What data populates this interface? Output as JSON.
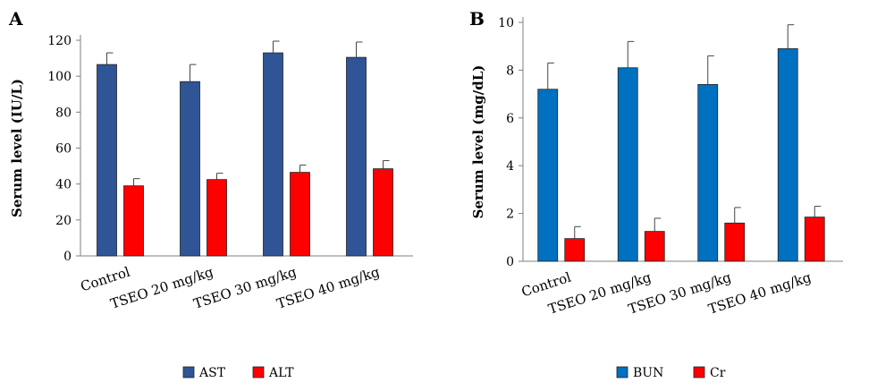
{
  "chart_data": [
    {
      "panel_label": "A",
      "type": "bar",
      "ylabel": "Serum level (IU/L)",
      "xlabel": "",
      "ylim": [
        0,
        120
      ],
      "yticks": [
        0,
        20,
        40,
        60,
        80,
        100,
        120
      ],
      "categories": [
        "Control",
        "TSEO 20 mg/kg",
        "TSEO 30 mg/kg",
        "TSEO 40 mg/kg"
      ],
      "series": [
        {
          "name": "AST",
          "color": "#2f5597",
          "values": [
            106.5,
            97,
            113,
            110.5
          ],
          "errors": [
            6.5,
            9.5,
            6.5,
            8.5
          ]
        },
        {
          "name": "ALT",
          "color": "#ff0000",
          "values": [
            39,
            42.5,
            46.5,
            48.5
          ],
          "errors": [
            4,
            3.5,
            4,
            4.5
          ]
        }
      ],
      "grid": false,
      "legend_position": "bottom"
    },
    {
      "panel_label": "B",
      "type": "bar",
      "ylabel": "Serum level (mg/dL)",
      "xlabel": "",
      "ylim": [
        0,
        10
      ],
      "yticks": [
        0,
        2,
        4,
        6,
        8,
        10
      ],
      "categories": [
        "Control",
        "TSEO 20 mg/kg",
        "TSEO 30 mg/kg",
        "TSEO 40 mg/kg"
      ],
      "series": [
        {
          "name": "BUN",
          "color": "#0070c0",
          "values": [
            7.2,
            8.1,
            7.4,
            8.9
          ],
          "errors": [
            1.1,
            1.1,
            1.2,
            1.0
          ]
        },
        {
          "name": "Cr",
          "color": "#ff0000",
          "values": [
            0.95,
            1.25,
            1.6,
            1.85
          ],
          "errors": [
            0.5,
            0.55,
            0.65,
            0.45
          ]
        }
      ],
      "grid": false,
      "legend_position": "bottom"
    }
  ]
}
